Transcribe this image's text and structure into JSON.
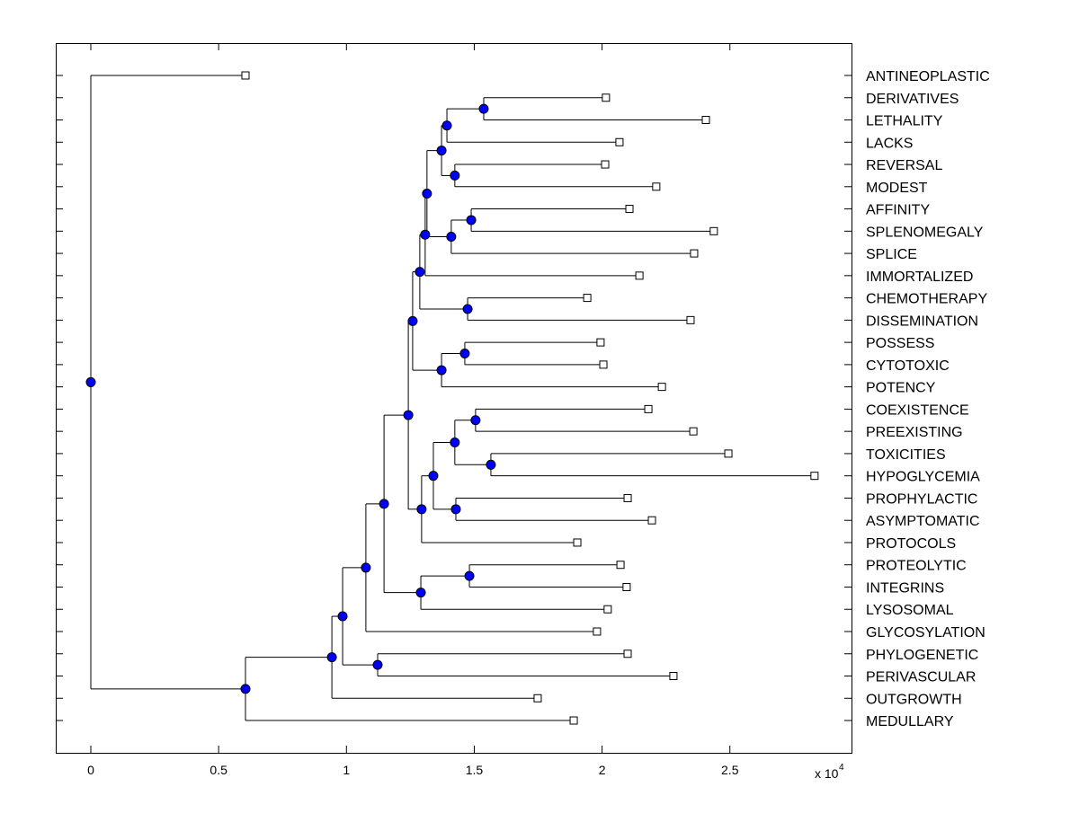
{
  "chart_data": {
    "type": "dendrogram",
    "title": "",
    "xlabel": "",
    "ylabel": "",
    "x_multiplier_label": "x 10",
    "x_multiplier_exponent": "4",
    "xlim": [
      -0.14,
      2.97
    ],
    "x_ticks": [
      0,
      0.5,
      1,
      1.5,
      2,
      2.5
    ],
    "x_tick_labels": [
      "0",
      "0.5",
      "1",
      "1.5",
      "2",
      "2.5"
    ],
    "colors": {
      "node": "#0000ff",
      "leaf": "#ffffff",
      "line": "#000000"
    },
    "tree": {
      "x": 0,
      "children": [
        {
          "label": "ANTINEOPLASTIC",
          "x": 0.605
        },
        {
          "x": 0.605,
          "children": [
            {
              "x": 0.943,
              "children": [
                {
                  "x": 0.985,
                  "children": [
                    {
                      "x": 1.076,
                      "children": [
                        {
                          "x": 1.147,
                          "children": [
                            {
                              "x": 1.242,
                              "children": [
                                {
                                  "x": 1.259,
                                  "children": [
                                    {
                                      "x": 1.287,
                                      "children": [
                                        {
                                          "x": 1.308,
                                          "children": [
                                            {
                                              "x": 1.315,
                                              "children": [
                                                {
                                                  "x": 1.372,
                                                  "children": [
                                                    {
                                                      "x": 1.393,
                                                      "children": [
                                                        {
                                                          "x": 1.537,
                                                          "children": [
                                                            {
                                                              "label": "DERIVATIVES",
                                                              "x": 2.015
                                                            },
                                                            {
                                                              "label": "LETHALITY",
                                                              "x": 2.406
                                                            }
                                                          ]
                                                        },
                                                        {
                                                          "label": "LACKS",
                                                          "x": 2.068
                                                        }
                                                      ]
                                                    },
                                                    {
                                                      "x": 1.424,
                                                      "children": [
                                                        {
                                                          "label": "REVERSAL",
                                                          "x": 2.012
                                                        },
                                                        {
                                                          "label": "MODEST",
                                                          "x": 2.212
                                                        }
                                                      ]
                                                    }
                                                  ]
                                                },
                                                {
                                                  "x": 1.41,
                                                  "children": [
                                                    {
                                                      "x": 1.488,
                                                      "children": [
                                                        {
                                                          "label": "AFFINITY",
                                                          "x": 2.107
                                                        },
                                                        {
                                                          "label": "SPLENOMEGALY",
                                                          "x": 2.437
                                                        }
                                                      ]
                                                    },
                                                    {
                                                      "label": "SPLICE",
                                                      "x": 2.36
                                                    }
                                                  ]
                                                }
                                              ]
                                            },
                                            {
                                              "label": "IMMORTALIZED",
                                              "x": 2.146
                                            }
                                          ]
                                        },
                                        {
                                          "x": 1.474,
                                          "children": [
                                            {
                                              "label": "CHEMOTHERAPY",
                                              "x": 1.942
                                            },
                                            {
                                              "label": "DISSEMINATION",
                                              "x": 2.346
                                            }
                                          ]
                                        }
                                      ]
                                    },
                                    {
                                      "x": 1.372,
                                      "children": [
                                        {
                                          "x": 1.463,
                                          "children": [
                                            {
                                              "label": "POSSESS",
                                              "x": 1.994
                                            },
                                            {
                                              "label": "CYTOTOXIC",
                                              "x": 2.005
                                            }
                                          ]
                                        },
                                        {
                                          "label": "POTENCY",
                                          "x": 2.234
                                        }
                                      ]
                                    }
                                  ]
                                },
                                {
                                  "x": 1.294,
                                  "children": [
                                    {
                                      "x": 1.34,
                                      "children": [
                                        {
                                          "x": 1.424,
                                          "children": [
                                            {
                                              "x": 1.505,
                                              "children": [
                                                {
                                                  "label": "COEXISTENCE",
                                                  "x": 2.181
                                                },
                                                {
                                                  "label": "PREEXISTING",
                                                  "x": 2.357
                                                }
                                              ]
                                            },
                                            {
                                              "x": 1.565,
                                              "children": [
                                                {
                                                  "label": "TOXICITIES",
                                                  "x": 2.494
                                                },
                                                {
                                                  "label": "HYPOGLYCEMIA",
                                                  "x": 2.831
                                                }
                                              ]
                                            }
                                          ]
                                        },
                                        {
                                          "x": 1.428,
                                          "children": [
                                            {
                                              "label": "PROPHYLACTIC",
                                              "x": 2.1
                                            },
                                            {
                                              "label": "ASYMPTOMATIC",
                                              "x": 2.195
                                            }
                                          ]
                                        }
                                      ]
                                    },
                                    {
                                      "label": "PROTOCOLS",
                                      "x": 1.903
                                    }
                                  ]
                                }
                              ]
                            },
                            {
                              "x": 1.291,
                              "children": [
                                {
                                  "x": 1.481,
                                  "children": [
                                    {
                                      "label": "PROTEOLYTIC",
                                      "x": 2.072
                                    },
                                    {
                                      "label": "INTEGRINS",
                                      "x": 2.096
                                    }
                                  ]
                                },
                                {
                                  "label": "LYSOSOMAL",
                                  "x": 2.022
                                }
                              ]
                            }
                          ]
                        },
                        {
                          "label": "GLYCOSYLATION",
                          "x": 1.98
                        }
                      ]
                    },
                    {
                      "x": 1.122,
                      "children": [
                        {
                          "label": "PHYLOGENETIC",
                          "x": 2.1
                        },
                        {
                          "label": "PERIVASCULAR",
                          "x": 2.279
                        }
                      ]
                    }
                  ]
                },
                {
                  "label": "OUTGROWTH",
                  "x": 1.748
                }
              ]
            },
            {
              "label": "MEDULLARY",
              "x": 1.889
            }
          ]
        }
      ]
    }
  }
}
